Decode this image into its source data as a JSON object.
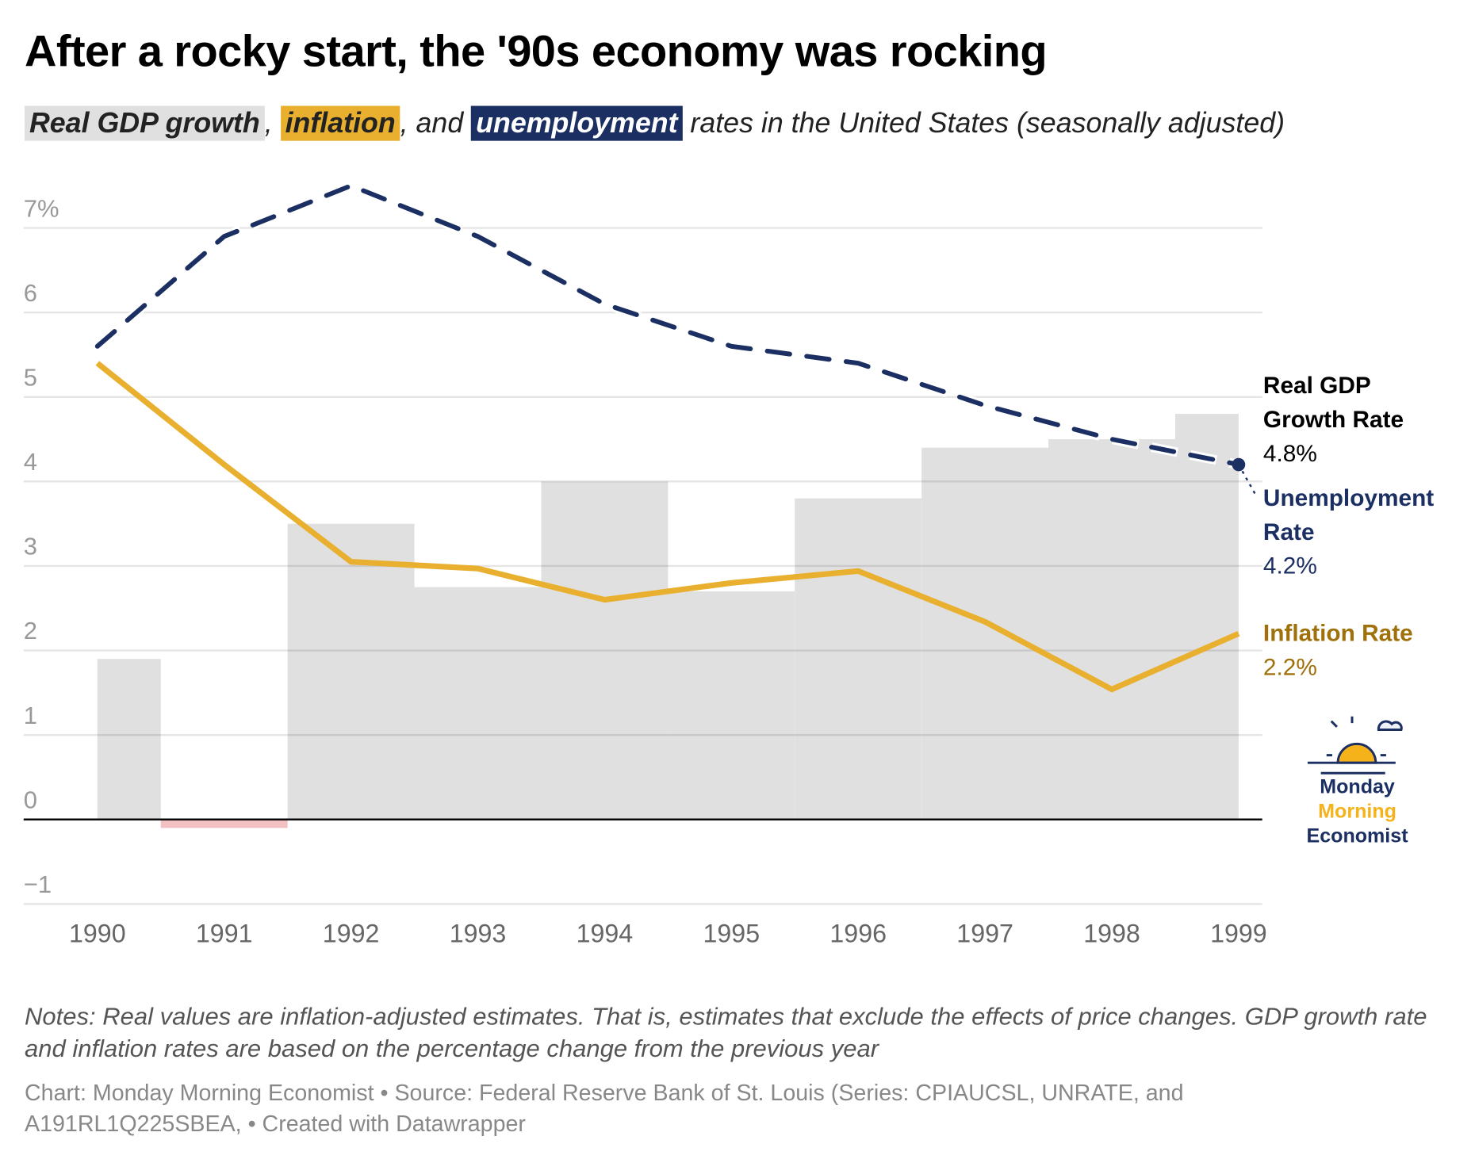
{
  "title": "After a rocky start, the '90s economy was rocking",
  "subtitle": {
    "gdp": "Real GDP growth",
    "sep1": ",",
    "inflation": "inflation",
    "sep2": ", and",
    "unemployment": "unemployment",
    "rest": "rates in the United States (seasonally adjusted)"
  },
  "chart_data": {
    "type": "bar+line",
    "title": "After a rocky start, the '90s economy was rocking",
    "categories": [
      "1990",
      "1991",
      "1992",
      "1993",
      "1994",
      "1995",
      "1996",
      "1997",
      "1998",
      "1999"
    ],
    "ylim": [
      -1,
      7.5
    ],
    "yticks": [
      -1,
      0,
      1,
      2,
      3,
      4,
      5,
      6,
      7
    ],
    "ytick_labels": [
      "−1",
      "0",
      "1",
      "2",
      "3",
      "4",
      "5",
      "6",
      "7%"
    ],
    "grid": true,
    "series": [
      {
        "name": "Real GDP Growth Rate",
        "type": "bar",
        "color": "#e0e0e0",
        "negative_color": "#f2c0c0",
        "values": [
          1.9,
          -0.1,
          3.5,
          2.75,
          4.0,
          2.7,
          3.8,
          4.4,
          4.5,
          4.8
        ],
        "end_label": "4.8%"
      },
      {
        "name": "Unemployment Rate",
        "type": "line",
        "style": "dashed",
        "color": "#1b2f63",
        "values": [
          5.6,
          6.9,
          7.5,
          6.9,
          6.1,
          5.6,
          5.4,
          4.9,
          4.5,
          4.2
        ],
        "end_label": "4.2%"
      },
      {
        "name": "Inflation Rate",
        "type": "line",
        "color": "#e9b02f",
        "label_color": "#a0700a",
        "values": [
          5.4,
          4.2,
          3.05,
          2.97,
          2.6,
          2.8,
          2.94,
          2.34,
          1.54,
          2.2
        ],
        "end_label": "2.2%"
      }
    ]
  },
  "labels": {
    "gdp_name_1": "Real GDP",
    "gdp_name_2": "Growth Rate",
    "gdp_value": "4.8%",
    "un_name_1": "Unemployment",
    "un_name_2": "Rate",
    "un_value": "4.2%",
    "inf_name": "Inflation Rate",
    "inf_value": "2.2%"
  },
  "logo": {
    "line1": "Monday",
    "line2": "Morning",
    "line3": "Economist"
  },
  "notes": "Notes: Real values are inflation-adjusted estimates. That is, estimates that exclude the effects of price changes. GDP growth rate and inflation rates are based on the percentage change from the previous year",
  "footer": "Chart: Monday Morning Economist • Source: Federal Reserve Bank of St. Louis (Series: CPIAUCSL, UNRATE, and A191RL1Q225SBEA,  • Created with Datawrapper"
}
